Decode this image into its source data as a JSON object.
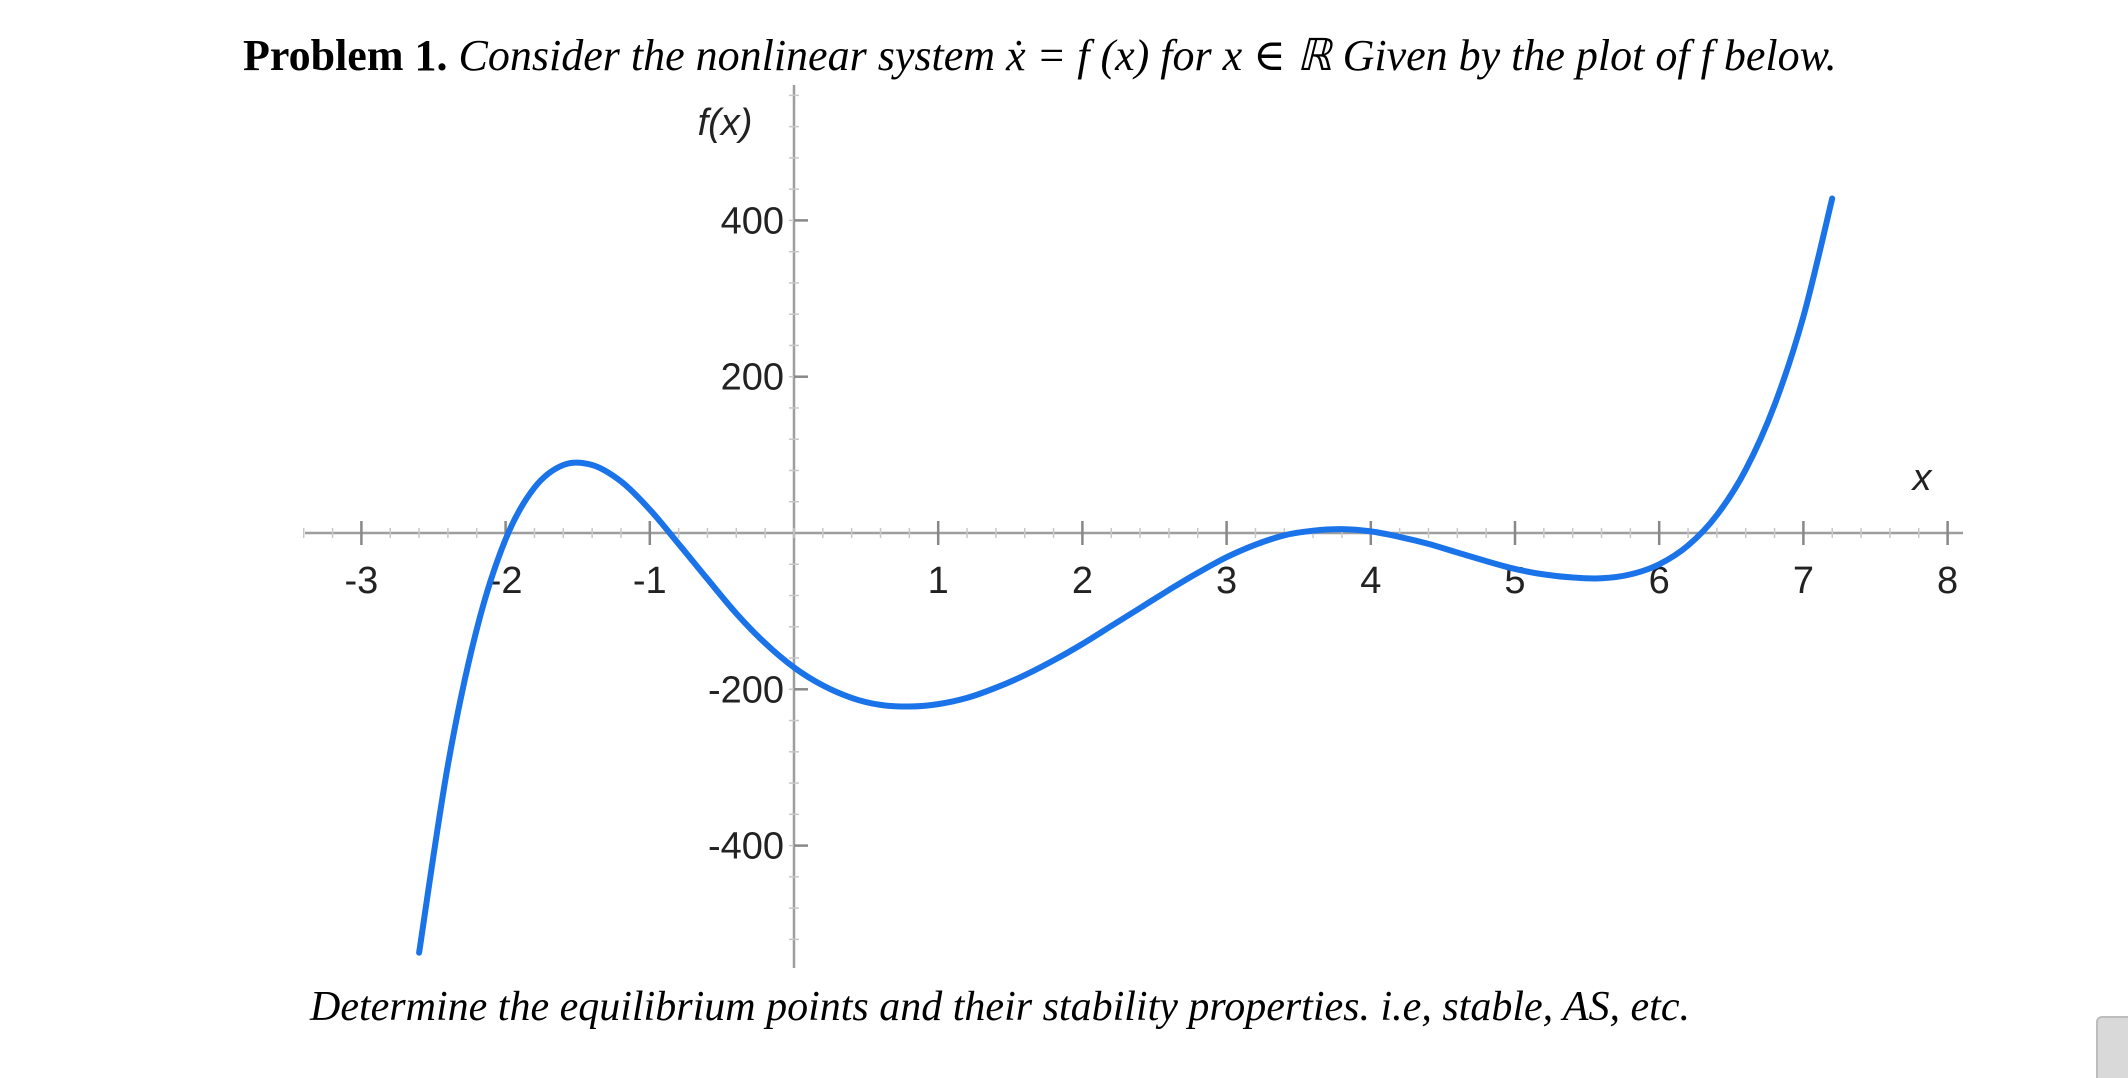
{
  "problem": {
    "label": "Problem 1.",
    "statement": "Consider the nonlinear system ẋ = f (x) for x ∈ ℝ Given by the plot of f below."
  },
  "question": "Determine the equilibrium points and their stability properties. i.e, stable, AS, etc.",
  "chart_data": {
    "type": "line",
    "title": "",
    "xlabel": "x",
    "ylabel": "f(x)",
    "xlim": [
      -3.6,
      8.3
    ],
    "ylim": [
      -560,
      560
    ],
    "grid": false,
    "x_ticks": [
      -3,
      -2,
      -1,
      1,
      2,
      3,
      4,
      5,
      6,
      7,
      8
    ],
    "x_tick_labels": [
      "-3",
      "-2",
      "-1",
      "1",
      "2",
      "3",
      "4",
      "5",
      "6",
      "7",
      "8"
    ],
    "y_ticks": [
      -400,
      -200,
      200,
      400
    ],
    "y_tick_labels": [
      "-400",
      "-200",
      "200",
      "400"
    ],
    "line_color": "#1a73e8",
    "series": [
      {
        "name": "",
        "x": [
          -2.6,
          -2.4,
          -2.2,
          -2.0,
          -1.8,
          -1.6,
          -1.4,
          -1.2,
          -1.0,
          -0.8,
          -0.6,
          -0.4,
          -0.2,
          0.0,
          0.2,
          0.4,
          0.6,
          0.8,
          1.0,
          1.2,
          1.4,
          1.6,
          1.8,
          2.0,
          2.2,
          2.4,
          2.6,
          2.8,
          3.0,
          3.2,
          3.4,
          3.6,
          3.8,
          4.0,
          4.2,
          4.4,
          4.6,
          4.8,
          5.0,
          5.2,
          5.4,
          5.6,
          5.8,
          6.0,
          6.2,
          6.4,
          6.6,
          6.8,
          7.0,
          7.2
        ],
        "y": [
          -537,
          -297,
          -123,
          -8,
          58,
          87,
          87,
          66,
          30,
          -14,
          -59,
          -103,
          -141,
          -172,
          -195,
          -211,
          -220,
          -222,
          -219,
          -211,
          -198,
          -182,
          -163,
          -142,
          -119,
          -96,
          -73,
          -51,
          -31,
          -15,
          -3,
          3,
          5,
          2,
          -5,
          -14,
          -25,
          -36,
          -46,
          -53,
          -57,
          -58,
          -53,
          -40,
          -16,
          23,
          81,
          164,
          277,
          428
        ]
      }
    ]
  }
}
